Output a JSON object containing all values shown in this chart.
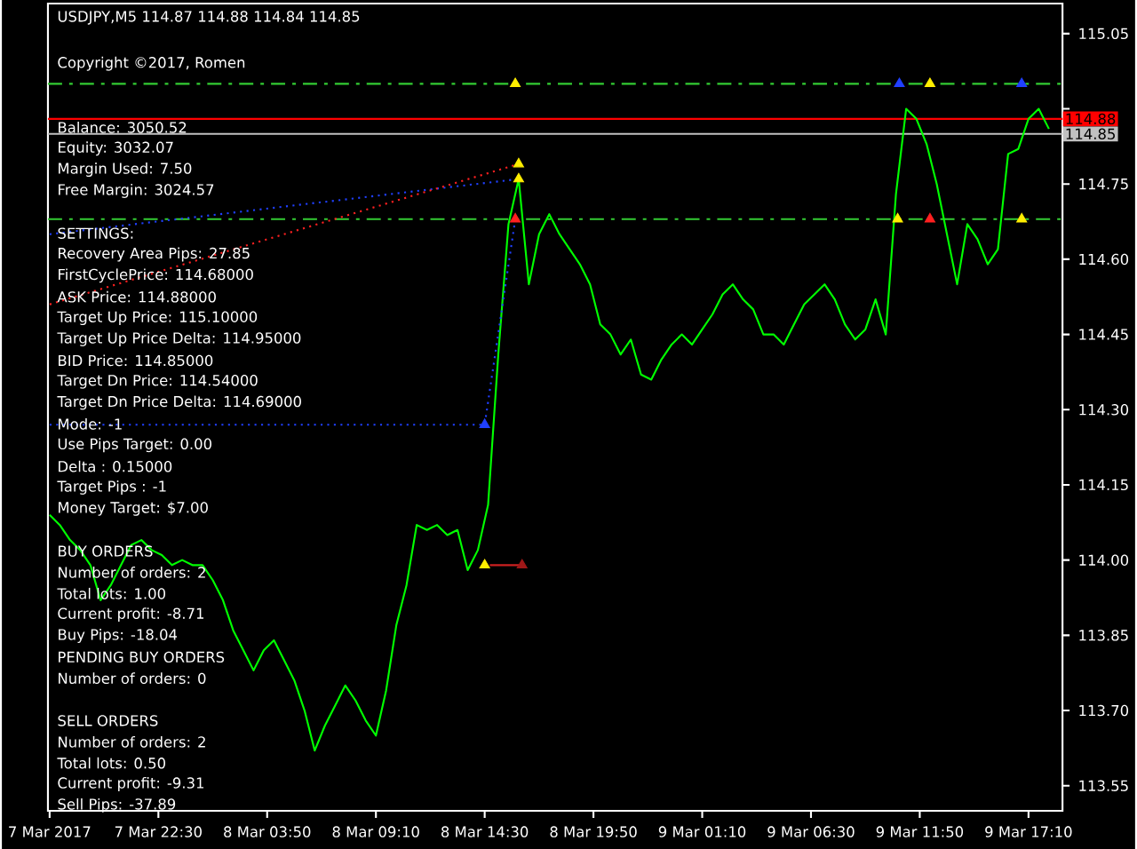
{
  "chart_data": {
    "type": "line",
    "title": "USDJPY,M5  114.87 114.88 114.84 114.85",
    "xlim": [
      "2017-03-07T17:05",
      "2017-03-09T18:50"
    ],
    "xticks": [
      {
        "value": "2017-03-07T17:10",
        "label": "7 Mar 2017"
      },
      {
        "value": "2017-03-07T22:30",
        "label": "7 Mar 22:30"
      },
      {
        "value": "2017-03-08T03:50",
        "label": "8 Mar 03:50"
      },
      {
        "value": "2017-03-08T09:10",
        "label": "8 Mar 09:10"
      },
      {
        "value": "2017-03-08T14:30",
        "label": "8 Mar 14:30"
      },
      {
        "value": "2017-03-08T19:50",
        "label": "8 Mar 19:50"
      },
      {
        "value": "2017-03-09T01:10",
        "label": "9 Mar 01:10"
      },
      {
        "value": "2017-03-09T06:30",
        "label": "9 Mar 06:30"
      },
      {
        "value": "2017-03-09T11:50",
        "label": "9 Mar 11:50"
      },
      {
        "value": "2017-03-09T17:10",
        "label": "9 Mar 17:10"
      }
    ],
    "ylim": [
      113.5,
      115.11
    ],
    "yticks": [
      {
        "value": 113.55,
        "label": "113.55"
      },
      {
        "value": 113.7,
        "label": "113.70"
      },
      {
        "value": 113.85,
        "label": "113.85"
      },
      {
        "value": 114.0,
        "label": "114.00"
      },
      {
        "value": 114.15,
        "label": "114.15"
      },
      {
        "value": 114.3,
        "label": "114.30"
      },
      {
        "value": 114.45,
        "label": "114.45"
      },
      {
        "value": 114.6,
        "label": "114.60"
      },
      {
        "value": 114.75,
        "label": "114.75"
      },
      {
        "value": 114.9,
        "label": null
      },
      {
        "value": 115.05,
        "label": "115.05"
      }
    ],
    "series": [
      {
        "color": "#00ff00",
        "x": [
          "2017-03-07T17:10",
          "2017-03-07T17:40",
          "2017-03-07T18:10",
          "2017-03-07T18:40",
          "2017-03-07T19:10",
          "2017-03-07T19:40",
          "2017-03-07T20:10",
          "2017-03-07T20:40",
          "2017-03-07T21:10",
          "2017-03-07T21:40",
          "2017-03-07T22:10",
          "2017-03-07T22:40",
          "2017-03-07T23:10",
          "2017-03-07T23:40",
          "2017-03-08T00:10",
          "2017-03-08T00:40",
          "2017-03-08T01:10",
          "2017-03-08T01:40",
          "2017-03-08T02:10",
          "2017-03-08T02:40",
          "2017-03-08T03:10",
          "2017-03-08T03:40",
          "2017-03-08T04:10",
          "2017-03-08T04:40",
          "2017-03-08T05:10",
          "2017-03-08T05:40",
          "2017-03-08T06:10",
          "2017-03-08T06:40",
          "2017-03-08T07:10",
          "2017-03-08T07:40",
          "2017-03-08T08:10",
          "2017-03-08T08:40",
          "2017-03-08T09:10",
          "2017-03-08T09:40",
          "2017-03-08T10:10",
          "2017-03-08T10:40",
          "2017-03-08T11:10",
          "2017-03-08T11:40",
          "2017-03-08T12:10",
          "2017-03-08T12:40",
          "2017-03-08T13:10",
          "2017-03-08T13:40",
          "2017-03-08T14:10",
          "2017-03-08T14:40",
          "2017-03-08T15:10",
          "2017-03-08T15:40",
          "2017-03-08T16:10",
          "2017-03-08T16:40",
          "2017-03-08T17:10",
          "2017-03-08T17:40",
          "2017-03-08T18:10",
          "2017-03-08T18:40",
          "2017-03-08T19:10",
          "2017-03-08T19:40",
          "2017-03-08T20:10",
          "2017-03-08T20:40",
          "2017-03-08T21:10",
          "2017-03-08T21:40",
          "2017-03-08T22:10",
          "2017-03-08T22:40",
          "2017-03-08T23:10",
          "2017-03-08T23:40",
          "2017-03-09T00:10",
          "2017-03-09T00:40",
          "2017-03-09T01:10",
          "2017-03-09T01:40",
          "2017-03-09T02:10",
          "2017-03-09T02:40",
          "2017-03-09T03:10",
          "2017-03-09T03:40",
          "2017-03-09T04:10",
          "2017-03-09T04:40",
          "2017-03-09T05:10",
          "2017-03-09T05:40",
          "2017-03-09T06:10",
          "2017-03-09T06:40",
          "2017-03-09T07:10",
          "2017-03-09T07:40",
          "2017-03-09T08:10",
          "2017-03-09T08:40",
          "2017-03-09T09:10",
          "2017-03-09T09:40",
          "2017-03-09T10:10",
          "2017-03-09T10:40",
          "2017-03-09T11:10",
          "2017-03-09T11:40",
          "2017-03-09T12:10",
          "2017-03-09T12:40",
          "2017-03-09T13:10",
          "2017-03-09T13:40",
          "2017-03-09T14:10",
          "2017-03-09T14:40",
          "2017-03-09T15:10",
          "2017-03-09T15:40",
          "2017-03-09T16:10",
          "2017-03-09T16:40",
          "2017-03-09T17:10",
          "2017-03-09T17:40",
          "2017-03-09T18:10"
        ],
        "values": [
          114.09,
          114.07,
          114.04,
          114.02,
          113.99,
          113.92,
          113.95,
          113.99,
          114.03,
          114.04,
          114.02,
          114.01,
          113.99,
          114.0,
          113.99,
          113.99,
          113.96,
          113.92,
          113.86,
          113.82,
          113.78,
          113.82,
          113.84,
          113.8,
          113.76,
          113.7,
          113.62,
          113.67,
          113.71,
          113.75,
          113.72,
          113.68,
          113.65,
          113.74,
          113.87,
          113.95,
          114.07,
          114.06,
          114.07,
          114.05,
          114.06,
          113.98,
          114.02,
          114.11,
          114.41,
          114.67,
          114.76,
          114.55,
          114.65,
          114.69,
          114.65,
          114.62,
          114.59,
          114.55,
          114.47,
          114.45,
          114.41,
          114.44,
          114.37,
          114.36,
          114.4,
          114.43,
          114.45,
          114.43,
          114.46,
          114.49,
          114.53,
          114.55,
          114.52,
          114.5,
          114.45,
          114.45,
          114.43,
          114.47,
          114.51,
          114.53,
          114.55,
          114.52,
          114.47,
          114.44,
          114.46,
          114.52,
          114.45,
          114.73,
          114.9,
          114.88,
          114.83,
          114.75,
          114.65,
          114.55,
          114.67,
          114.64,
          114.59,
          114.62,
          114.81,
          114.82,
          114.88,
          114.9,
          114.86
        ]
      },
      {
        "color": "#2040ff",
        "line_style": "dotted",
        "x": [
          "2017-03-07T17:10",
          "2017-03-08T16:10"
        ],
        "values": [
          114.65,
          114.76
        ]
      },
      {
        "color": "#ff2020",
        "line_style": "dotted",
        "x": [
          "2017-03-07T17:10",
          "2017-03-08T16:10"
        ],
        "values": [
          114.51,
          114.79
        ]
      },
      {
        "color": "#2040ff",
        "line_style": "dotted",
        "x": [
          "2017-03-07T17:10",
          "2017-03-08T14:30",
          "2017-03-08T16:00"
        ],
        "values": [
          114.27,
          114.27,
          114.68
        ]
      },
      {
        "color": "#cc2020",
        "line_style": "solid",
        "x": [
          "2017-03-08T14:45",
          "2017-03-08T16:15"
        ],
        "values": [
          113.99,
          113.99
        ]
      },
      {
        "type": "scatter",
        "marker": "triangle",
        "x": [
          "2017-03-08T16:00",
          "2017-03-09T10:50",
          "2017-03-09T12:20",
          "2017-03-09T16:50",
          "2017-03-08T16:10",
          "2017-03-08T16:10",
          "2017-03-08T16:00",
          "2017-03-09T10:45",
          "2017-03-09T12:20",
          "2017-03-09T16:50",
          "2017-03-08T14:30",
          "2017-03-08T14:30",
          "2017-03-08T16:20"
        ],
        "values": [
          114.95,
          114.95,
          114.95,
          114.95,
          114.79,
          114.76,
          114.68,
          114.68,
          114.68,
          114.68,
          114.27,
          113.99,
          113.99
        ],
        "colors": [
          "#ffee00",
          "#2040ff",
          "#ffee00",
          "#2040ff",
          "#ffee00",
          "#ffee00",
          "#ff2020",
          "#ffee00",
          "#ff2020",
          "#ffee00",
          "#2040ff",
          "#ffee00",
          "#a01818"
        ]
      }
    ],
    "ref_lines": [
      {
        "axis": "y",
        "value": 114.95,
        "color": "#33cc33",
        "line_style": "dashed"
      },
      {
        "axis": "y",
        "value": 114.68,
        "color": "#33cc33",
        "line_style": "dashed"
      },
      {
        "axis": "y",
        "value": 114.88,
        "label": "114.88",
        "color": "#ff0000"
      },
      {
        "axis": "y",
        "value": 114.85,
        "label": "114.85",
        "color": "#c0c0c0"
      }
    ],
    "annotations": [
      "Copyright ©2017, Romen",
      "Balance: 3050.52",
      "Equity: 3032.07",
      "Margin Used: 7.50",
      "Free Margin: 3024.57",
      "SETTINGS:",
      "Recovery Area Pips: 27.85",
      "FirstCyclePrice: 114.68000",
      "ASK Price: 114.88000",
      "Target Up Price: 115.10000",
      "Target Up Price Delta: 114.95000",
      "BID Price: 114.85000",
      "Target Dn Price: 114.54000",
      "Target Dn Price Delta: 114.69000",
      "Mode: -1",
      "Use Pips Target: 0.00",
      "Delta : 0.15000",
      "Target Pips : -1",
      "Money Target: $7.00",
      "BUY ORDERS",
      "Number of orders: 2",
      "Total lots: 1.00",
      "Current profit: -8.71",
      "Buy Pips: -18.04",
      "PENDING BUY ORDERS",
      "Number of orders: 0",
      "SELL ORDERS",
      "Number of orders: 2",
      "Total lots: 0.50",
      "Current profit: -9.31",
      "Sell Pips: -37.89"
    ]
  }
}
